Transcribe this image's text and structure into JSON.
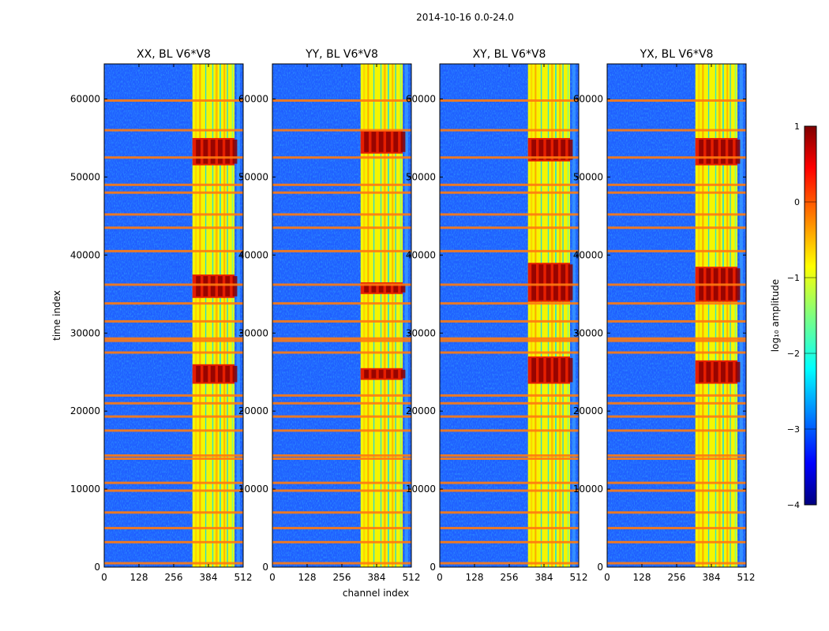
{
  "chart_data": {
    "type": "heatmap",
    "suptitle": "2014-10-16 0.0-24.0",
    "xlabel": "channel index",
    "ylabel": "time index",
    "xlim": [
      0,
      512
    ],
    "ylim": [
      0,
      64500
    ],
    "xticks": [
      0,
      128,
      256,
      384,
      512
    ],
    "yticks": [
      0,
      10000,
      20000,
      30000,
      40000,
      50000,
      60000
    ],
    "colormap": "jet",
    "colorbar": {
      "label": "log₁₀ amplitude",
      "range": [
        -4,
        1
      ],
      "ticks": [
        1,
        0,
        -1,
        -2,
        -3,
        -4
      ],
      "tick_labels": [
        "1",
        "0",
        "−1",
        "−2",
        "−3",
        "−4"
      ]
    },
    "panels": [
      {
        "title": "XX, BL V6*V8",
        "strong_bands": [
          [
            23500,
            26000
          ],
          [
            34500,
            37500
          ],
          [
            51500,
            55000
          ]
        ]
      },
      {
        "title": "YY, BL V6*V8",
        "strong_bands": [
          [
            24000,
            25500
          ],
          [
            35000,
            36500
          ],
          [
            53000,
            56000
          ]
        ]
      },
      {
        "title": "XY, BL V6*V8",
        "strong_bands": [
          [
            23500,
            27000
          ],
          [
            34000,
            39000
          ],
          [
            52000,
            55000
          ]
        ]
      },
      {
        "title": "YX, BL V6*V8",
        "strong_bands": [
          [
            23500,
            26500
          ],
          [
            34000,
            38500
          ],
          [
            51500,
            55000
          ]
        ]
      }
    ],
    "rfi_lines": [
      500,
      3200,
      5000,
      7000,
      9800,
      10800,
      13900,
      14300,
      17500,
      19300,
      21000,
      22000,
      27500,
      29000,
      29300,
      31500,
      33800,
      36200,
      40500,
      43500,
      45200,
      48000,
      49000,
      52500,
      56000,
      59800
    ]
  }
}
